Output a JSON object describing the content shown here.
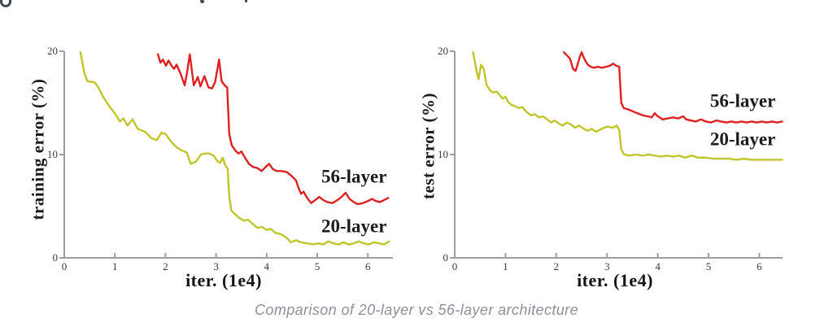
{
  "caption": "Comparison of 20-layer vs 56-layer architecture",
  "colors": {
    "line_20_layer": "#c0c52a",
    "line_56_layer": "#df2020",
    "axis": "#9aa0a6",
    "caption_text": "#8b919b"
  },
  "chart_data": [
    {
      "type": "line",
      "title": "",
      "xlabel": "iter. (1e4)",
      "ylabel": "training error (%)",
      "xlim": [
        0,
        6.5
      ],
      "ylim": [
        0,
        20
      ],
      "x_ticks": [
        0,
        1,
        2,
        3,
        4,
        5,
        6
      ],
      "y_ticks": [
        0,
        10,
        20
      ],
      "grid": false,
      "legend_position": "inline-right",
      "series": [
        {
          "name": "20-layer",
          "color": "#c0c52a",
          "points": [
            [
              0.32,
              19.9
            ],
            [
              0.4,
              17.8
            ],
            [
              0.46,
              17.1
            ],
            [
              0.6,
              17.0
            ],
            [
              0.66,
              16.6
            ],
            [
              0.78,
              15.5
            ],
            [
              0.9,
              14.6
            ],
            [
              1.0,
              14.0
            ],
            [
              1.1,
              13.2
            ],
            [
              1.17,
              13.5
            ],
            [
              1.25,
              12.8
            ],
            [
              1.35,
              13.4
            ],
            [
              1.45,
              12.5
            ],
            [
              1.6,
              12.2
            ],
            [
              1.72,
              11.6
            ],
            [
              1.83,
              11.4
            ],
            [
              1.92,
              12.1
            ],
            [
              2.0,
              12.0
            ],
            [
              2.12,
              11.2
            ],
            [
              2.22,
              10.7
            ],
            [
              2.32,
              10.4
            ],
            [
              2.42,
              10.2
            ],
            [
              2.5,
              9.1
            ],
            [
              2.6,
              9.3
            ],
            [
              2.7,
              10.0
            ],
            [
              2.79,
              10.1
            ],
            [
              2.87,
              10.1
            ],
            [
              2.95,
              9.9
            ],
            [
              3.02,
              9.4
            ],
            [
              3.08,
              9.2
            ],
            [
              3.13,
              9.7
            ],
            [
              3.18,
              9.0
            ],
            [
              3.23,
              8.6
            ],
            [
              3.26,
              6.0
            ],
            [
              3.3,
              4.6
            ],
            [
              3.36,
              4.3
            ],
            [
              3.45,
              3.9
            ],
            [
              3.55,
              3.6
            ],
            [
              3.63,
              3.7
            ],
            [
              3.72,
              3.3
            ],
            [
              3.82,
              2.9
            ],
            [
              3.9,
              3.0
            ],
            [
              4.0,
              2.7
            ],
            [
              4.08,
              2.8
            ],
            [
              4.18,
              2.4
            ],
            [
              4.28,
              2.3
            ],
            [
              4.38,
              2.0
            ],
            [
              4.48,
              1.5
            ],
            [
              4.58,
              1.7
            ],
            [
              4.68,
              1.5
            ],
            [
              4.8,
              1.4
            ],
            [
              4.92,
              1.3
            ],
            [
              5.02,
              1.4
            ],
            [
              5.12,
              1.3
            ],
            [
              5.22,
              1.6
            ],
            [
              5.32,
              1.4
            ],
            [
              5.42,
              1.3
            ],
            [
              5.52,
              1.5
            ],
            [
              5.62,
              1.3
            ],
            [
              5.72,
              1.4
            ],
            [
              5.82,
              1.6
            ],
            [
              5.92,
              1.4
            ],
            [
              6.02,
              1.3
            ],
            [
              6.12,
              1.5
            ],
            [
              6.22,
              1.4
            ],
            [
              6.32,
              1.3
            ],
            [
              6.42,
              1.6
            ]
          ]
        },
        {
          "name": "56-layer",
          "color": "#df2020",
          "points": [
            [
              1.85,
              19.7
            ],
            [
              1.9,
              18.9
            ],
            [
              1.95,
              19.2
            ],
            [
              2.01,
              18.6
            ],
            [
              2.06,
              19.1
            ],
            [
              2.12,
              18.6
            ],
            [
              2.17,
              18.3
            ],
            [
              2.22,
              18.7
            ],
            [
              2.3,
              17.8
            ],
            [
              2.38,
              16.7
            ],
            [
              2.43,
              18.0
            ],
            [
              2.48,
              19.7
            ],
            [
              2.56,
              16.7
            ],
            [
              2.64,
              17.5
            ],
            [
              2.69,
              16.6
            ],
            [
              2.77,
              17.6
            ],
            [
              2.85,
              16.5
            ],
            [
              2.92,
              16.4
            ],
            [
              2.98,
              17.0
            ],
            [
              3.06,
              19.2
            ],
            [
              3.11,
              17.1
            ],
            [
              3.17,
              16.7
            ],
            [
              3.22,
              16.5
            ],
            [
              3.26,
              12.0
            ],
            [
              3.31,
              10.9
            ],
            [
              3.38,
              10.4
            ],
            [
              3.44,
              10.1
            ],
            [
              3.5,
              10.3
            ],
            [
              3.57,
              9.7
            ],
            [
              3.65,
              9.1
            ],
            [
              3.73,
              8.8
            ],
            [
              3.81,
              8.7
            ],
            [
              3.9,
              8.4
            ],
            [
              3.98,
              8.8
            ],
            [
              4.05,
              9.1
            ],
            [
              4.12,
              8.6
            ],
            [
              4.2,
              8.4
            ],
            [
              4.3,
              8.4
            ],
            [
              4.4,
              8.3
            ],
            [
              4.5,
              7.9
            ],
            [
              4.58,
              7.5
            ],
            [
              4.62,
              6.9
            ],
            [
              4.68,
              6.2
            ],
            [
              4.73,
              6.4
            ],
            [
              4.8,
              5.8
            ],
            [
              4.88,
              5.3
            ],
            [
              4.96,
              5.6
            ],
            [
              5.04,
              5.9
            ],
            [
              5.12,
              5.6
            ],
            [
              5.2,
              5.4
            ],
            [
              5.3,
              5.3
            ],
            [
              5.4,
              5.6
            ],
            [
              5.48,
              5.9
            ],
            [
              5.56,
              6.3
            ],
            [
              5.64,
              5.7
            ],
            [
              5.72,
              5.4
            ],
            [
              5.8,
              5.2
            ],
            [
              5.9,
              5.3
            ],
            [
              6.0,
              5.5
            ],
            [
              6.08,
              5.7
            ],
            [
              6.16,
              5.5
            ],
            [
              6.24,
              5.4
            ],
            [
              6.32,
              5.6
            ],
            [
              6.4,
              5.8
            ]
          ]
        }
      ],
      "series_labels": [
        {
          "text": "56-layer",
          "x": 5.08,
          "y": 7.3
        },
        {
          "text": "20-layer",
          "x": 5.08,
          "y": 2.5
        }
      ]
    },
    {
      "type": "line",
      "title": "",
      "xlabel": "iter. (1e4)",
      "ylabel": "test error (%)",
      "xlim": [
        0,
        6.5
      ],
      "ylim": [
        0,
        20
      ],
      "x_ticks": [
        0,
        1,
        2,
        3,
        4,
        5,
        6
      ],
      "y_ticks": [
        0,
        10,
        20
      ],
      "grid": false,
      "legend_position": "inline-right",
      "series": [
        {
          "name": "20-layer",
          "color": "#c0c52a",
          "points": [
            [
              0.36,
              19.9
            ],
            [
              0.43,
              18.1
            ],
            [
              0.47,
              17.3
            ],
            [
              0.52,
              18.7
            ],
            [
              0.57,
              18.3
            ],
            [
              0.63,
              16.7
            ],
            [
              0.7,
              16.2
            ],
            [
              0.76,
              16.0
            ],
            [
              0.82,
              16.1
            ],
            [
              0.88,
              15.8
            ],
            [
              0.94,
              15.4
            ],
            [
              1.0,
              15.6
            ],
            [
              1.05,
              15.1
            ],
            [
              1.12,
              14.8
            ],
            [
              1.18,
              14.7
            ],
            [
              1.26,
              14.5
            ],
            [
              1.33,
              14.6
            ],
            [
              1.42,
              14.1
            ],
            [
              1.5,
              13.8
            ],
            [
              1.58,
              13.9
            ],
            [
              1.66,
              13.6
            ],
            [
              1.74,
              13.7
            ],
            [
              1.82,
              13.4
            ],
            [
              1.9,
              13.1
            ],
            [
              1.97,
              13.3
            ],
            [
              2.05,
              13.0
            ],
            [
              2.13,
              12.8
            ],
            [
              2.21,
              13.1
            ],
            [
              2.29,
              12.9
            ],
            [
              2.37,
              12.6
            ],
            [
              2.45,
              12.8
            ],
            [
              2.54,
              12.5
            ],
            [
              2.62,
              12.3
            ],
            [
              2.7,
              12.5
            ],
            [
              2.78,
              12.2
            ],
            [
              2.86,
              12.4
            ],
            [
              2.94,
              12.6
            ],
            [
              3.02,
              12.7
            ],
            [
              3.11,
              12.6
            ],
            [
              3.19,
              12.8
            ],
            [
              3.24,
              12.4
            ],
            [
              3.28,
              10.5
            ],
            [
              3.34,
              10.0
            ],
            [
              3.45,
              9.9
            ],
            [
              3.58,
              10.0
            ],
            [
              3.7,
              9.9
            ],
            [
              3.82,
              10.0
            ],
            [
              3.94,
              9.9
            ],
            [
              4.06,
              9.8
            ],
            [
              4.18,
              9.9
            ],
            [
              4.3,
              9.8
            ],
            [
              4.42,
              9.9
            ],
            [
              4.54,
              9.7
            ],
            [
              4.66,
              9.9
            ],
            [
              4.8,
              9.7
            ],
            [
              4.95,
              9.7
            ],
            [
              5.1,
              9.6
            ],
            [
              5.25,
              9.6
            ],
            [
              5.4,
              9.6
            ],
            [
              5.55,
              9.5
            ],
            [
              5.7,
              9.6
            ],
            [
              5.85,
              9.5
            ],
            [
              6.0,
              9.5
            ],
            [
              6.15,
              9.5
            ],
            [
              6.3,
              9.5
            ],
            [
              6.45,
              9.5
            ]
          ]
        },
        {
          "name": "56-layer",
          "color": "#df2020",
          "points": [
            [
              2.15,
              19.9
            ],
            [
              2.21,
              19.6
            ],
            [
              2.27,
              19.3
            ],
            [
              2.33,
              18.3
            ],
            [
              2.38,
              18.1
            ],
            [
              2.42,
              18.7
            ],
            [
              2.46,
              19.4
            ],
            [
              2.5,
              19.9
            ],
            [
              2.56,
              19.2
            ],
            [
              2.62,
              18.7
            ],
            [
              2.68,
              18.5
            ],
            [
              2.74,
              18.4
            ],
            [
              2.82,
              18.5
            ],
            [
              2.9,
              18.4
            ],
            [
              2.98,
              18.5
            ],
            [
              3.06,
              18.6
            ],
            [
              3.12,
              18.8
            ],
            [
              3.18,
              18.6
            ],
            [
              3.24,
              18.5
            ],
            [
              3.28,
              15.0
            ],
            [
              3.33,
              14.5
            ],
            [
              3.4,
              14.4
            ],
            [
              3.5,
              14.2
            ],
            [
              3.6,
              14.0
            ],
            [
              3.7,
              13.8
            ],
            [
              3.8,
              13.7
            ],
            [
              3.88,
              13.6
            ],
            [
              3.94,
              14.0
            ],
            [
              4.0,
              13.7
            ],
            [
              4.1,
              13.4
            ],
            [
              4.2,
              13.5
            ],
            [
              4.3,
              13.6
            ],
            [
              4.4,
              13.5
            ],
            [
              4.5,
              13.7
            ],
            [
              4.56,
              13.4
            ],
            [
              4.65,
              13.3
            ],
            [
              4.75,
              13.2
            ],
            [
              4.85,
              13.4
            ],
            [
              4.95,
              13.2
            ],
            [
              5.05,
              13.1
            ],
            [
              5.15,
              13.3
            ],
            [
              5.25,
              13.2
            ],
            [
              5.35,
              13.1
            ],
            [
              5.45,
              13.2
            ],
            [
              5.55,
              13.1
            ],
            [
              5.65,
              13.2
            ],
            [
              5.75,
              13.1
            ],
            [
              5.85,
              13.2
            ],
            [
              5.95,
              13.1
            ],
            [
              6.05,
              13.2
            ],
            [
              6.15,
              13.1
            ],
            [
              6.25,
              13.2
            ],
            [
              6.35,
              13.1
            ],
            [
              6.45,
              13.2
            ]
          ]
        }
      ],
      "series_labels": [
        {
          "text": "56-layer",
          "x": 5.03,
          "y": 14.6
        },
        {
          "text": "20-layer",
          "x": 5.03,
          "y": 10.9
        }
      ]
    }
  ]
}
